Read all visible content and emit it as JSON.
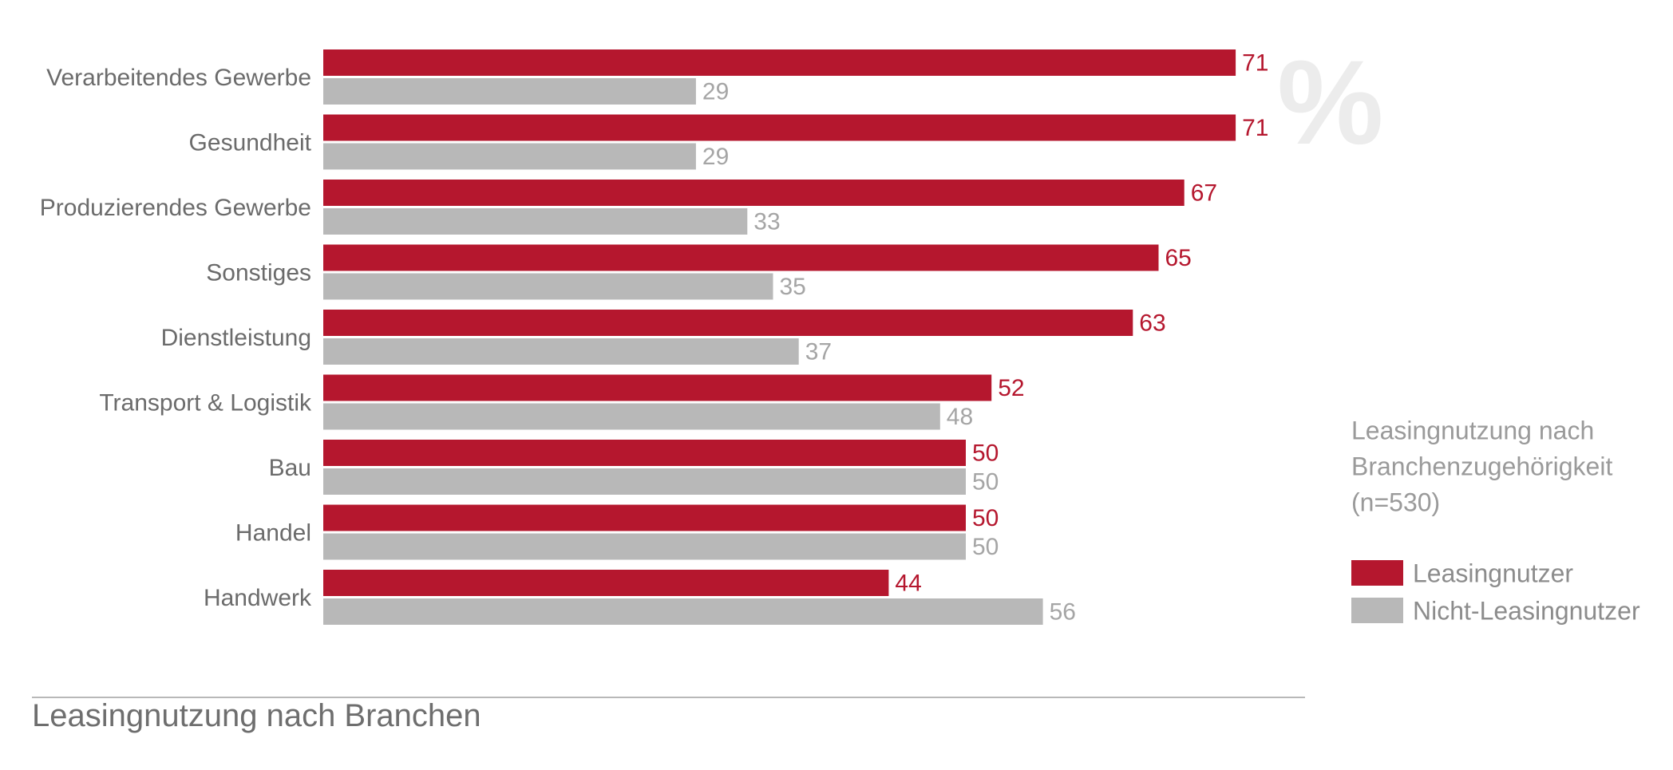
{
  "chart_data": {
    "type": "bar",
    "orientation": "horizontal",
    "unit": "%",
    "title": "Leasingnutzung nach Branchen",
    "subtitle_lines": [
      "Leasingnutzung nach",
      "Branchenzugehörigkeit",
      "(n=530)"
    ],
    "categories": [
      "Verarbeitendes Gewerbe",
      "Gesundheit",
      "Produzierendes Gewerbe",
      "Sonstiges",
      "Dienstleistung",
      "Transport & Logistik",
      "Bau",
      "Handel",
      "Handwerk"
    ],
    "series": [
      {
        "name": "Leasingnutzer",
        "color": "#b5172e",
        "values": [
          71,
          71,
          67,
          65,
          63,
          52,
          50,
          50,
          44
        ]
      },
      {
        "name": "Nicht-Leasingnutzer",
        "color": "#b8b8b8",
        "values": [
          29,
          29,
          33,
          35,
          37,
          48,
          50,
          50,
          56
        ]
      }
    ],
    "xlim": [
      0,
      100
    ],
    "grid": false,
    "legend_position": "right"
  },
  "colors": {
    "label_text": "#6b6b6b",
    "value_text_primary": "#b5172e",
    "value_text_secondary": "#a5a5a5"
  }
}
